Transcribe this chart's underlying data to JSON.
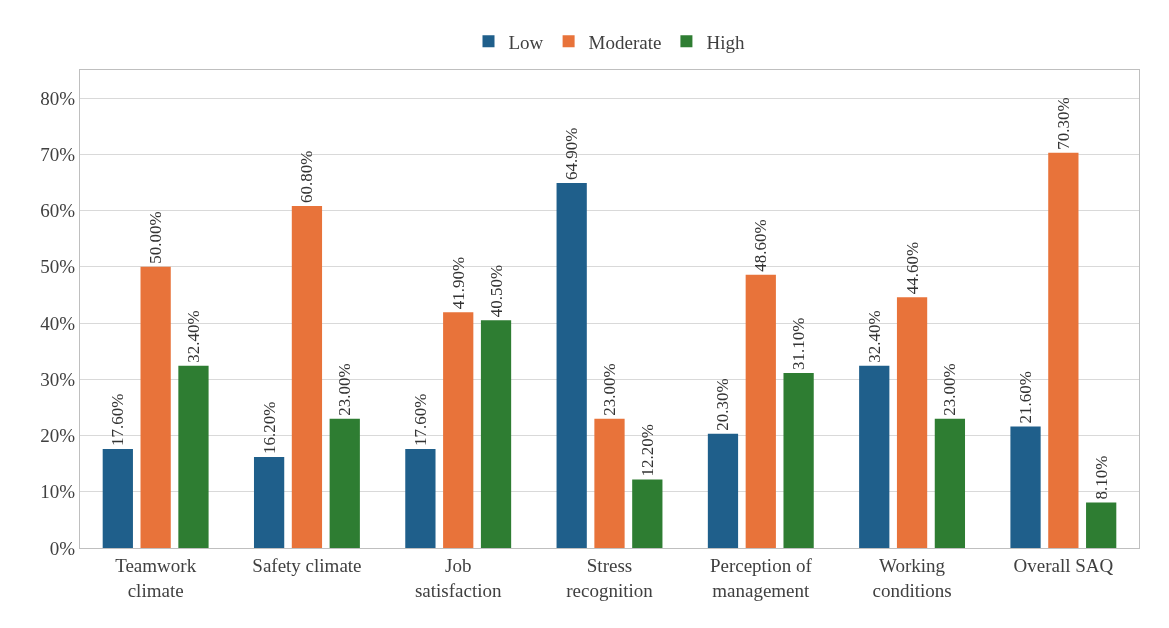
{
  "chart_data": {
    "type": "bar",
    "categories": [
      "Teamwork\nclimate",
      "Safety climate",
      "Job\nsatisfaction",
      "Stress\nrecognition",
      "Perception of\nmanagement",
      "Working\nconditions",
      "Overall SAQ"
    ],
    "series": [
      {
        "name": "Low",
        "color": "#1f5f8b",
        "values": [
          17.6,
          16.2,
          17.6,
          64.9,
          20.3,
          32.4,
          21.6
        ],
        "value_labels": [
          "17.60%",
          "16.20%",
          "17.60%",
          "64.90%",
          "20.30%",
          "32.40%",
          "21.60%"
        ]
      },
      {
        "name": "Moderate",
        "color": "#e8733a",
        "values": [
          50.0,
          60.8,
          41.9,
          23.0,
          48.6,
          44.6,
          70.3
        ],
        "value_labels": [
          "50.00%",
          "60.80%",
          "41.90%",
          "23.00%",
          "48.60%",
          "44.60%",
          "70.30%"
        ]
      },
      {
        "name": "High",
        "color": "#2e7d32",
        "values": [
          32.4,
          23.0,
          40.5,
          12.2,
          31.1,
          23.0,
          8.1
        ],
        "value_labels": [
          "32.40%",
          "23.00%",
          "40.50%",
          "12.20%",
          "31.10%",
          "23.00%",
          "8.10%"
        ]
      }
    ],
    "ylim": [
      0,
      85
    ],
    "yticks": [
      {
        "value": 0,
        "label": "0%"
      },
      {
        "value": 10,
        "label": "10%"
      },
      {
        "value": 20,
        "label": "20%"
      },
      {
        "value": 30,
        "label": "30%"
      },
      {
        "value": 40,
        "label": "40%"
      },
      {
        "value": 50,
        "label": "50%"
      },
      {
        "value": 60,
        "label": "60%"
      },
      {
        "value": 70,
        "label": "70%"
      },
      {
        "value": 80,
        "label": "80%"
      }
    ],
    "grid": "y",
    "legend": "top"
  }
}
